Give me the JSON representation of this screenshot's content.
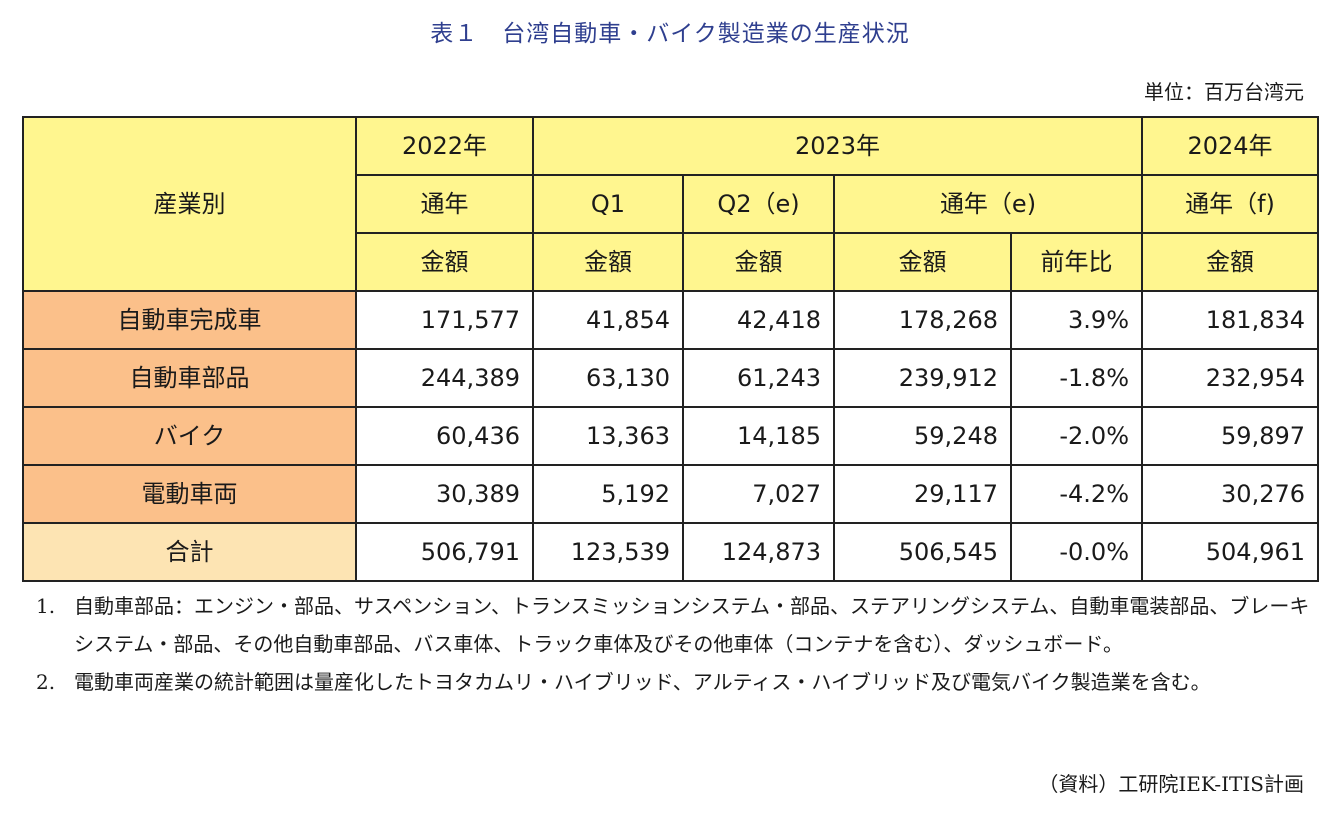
{
  "title": "表１　台湾自動車・バイク製造業の生産状況",
  "unit": "単位：百万台湾元",
  "header": {
    "row_label": "産業別",
    "y2022": "2022年",
    "y2023": "2023年",
    "y2024": "2024年",
    "full_year": "通年",
    "q1": "Q1",
    "q2e": "Q2（e)",
    "full_year_e": "通年（e)",
    "full_year_f": "通年（f)",
    "amount": "金額",
    "yoy": "前年比"
  },
  "rows": [
    {
      "label": "自動車完成車",
      "v2022": "171,577",
      "q1": "41,854",
      "q2": "42,418",
      "fy2023": "178,268",
      "yoy": "3.9%",
      "fy2024": "181,834"
    },
    {
      "label": "自動車部品",
      "v2022": "244,389",
      "q1": "63,130",
      "q2": "61,243",
      "fy2023": "239,912",
      "yoy": "-1.8%",
      "fy2024": "232,954"
    },
    {
      "label": "バイク",
      "v2022": "60,436",
      "q1": "13,363",
      "q2": "14,185",
      "fy2023": "59,248",
      "yoy": "-2.0%",
      "fy2024": "59,897"
    },
    {
      "label": "電動車両",
      "v2022": "30,389",
      "q1": "5,192",
      "q2": "7,027",
      "fy2023": "29,117",
      "yoy": "-4.2%",
      "fy2024": "30,276"
    },
    {
      "label": "合計",
      "v2022": "506,791",
      "q1": "123,539",
      "q2": "124,873",
      "fy2023": "506,545",
      "yoy": "-0.0%",
      "fy2024": "504,961"
    }
  ],
  "notes": [
    {
      "num": "1.",
      "text": "自動車部品：エンジン・部品、サスペンション、トランスミッションシステム・部品、ステアリングシステム、自動車電装部品、ブレーキシステム・部品、その他自動車部品、バス車体、トラック車体及びその他車体（コンテナを含む）、ダッシュボード。"
    },
    {
      "num": "2.",
      "text": "電動車両産業の統計範囲は量産化したトヨタカムリ・ハイブリッド、アルティス・ハイブリッド及び電気バイク製造業を含む。"
    }
  ],
  "source": "（資料）工研院IEK-ITIS計画"
}
